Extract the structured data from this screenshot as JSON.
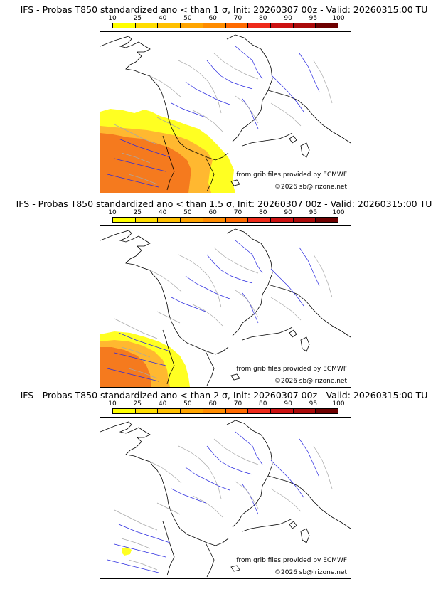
{
  "colorbar": {
    "ticks": [
      "10",
      "25",
      "40",
      "50",
      "60",
      "70",
      "80",
      "90",
      "95",
      "100"
    ],
    "colors": [
      "#ffff00",
      "#ffdd00",
      "#ffc000",
      "#ffa500",
      "#ff8c00",
      "#ff6a00",
      "#ee2a1a",
      "#cc1111",
      "#aa0a0a",
      "#6e0000"
    ]
  },
  "shade_colors": {
    "low": "#ffff22",
    "mid": "#ffb830",
    "high": "#f57a1e"
  },
  "map_colors": {
    "coast": "#000000",
    "rivers": "#2a2ae0",
    "borders": "#a8a8a8"
  },
  "credits": {
    "source": "from grib files provided by ECMWF",
    "copyright": "©2026 sb@irizone.net"
  },
  "panels": [
    {
      "title": "IFS - Probas T850  standardized ano < than 1 σ, Init: 20260307 00z - Valid: 20260315:00 TU",
      "threshold": "1 σ"
    },
    {
      "title": "IFS - Probas T850  standardized ano < than 1.5 σ, Init: 20260307 00z - Valid: 20260315:00 TU",
      "threshold": "1.5 σ"
    },
    {
      "title": "IFS - Probas T850  standardized ano < than 2 σ, Init: 20260307 00z - Valid: 20260315:00 TU",
      "threshold": "2 σ"
    }
  ]
}
